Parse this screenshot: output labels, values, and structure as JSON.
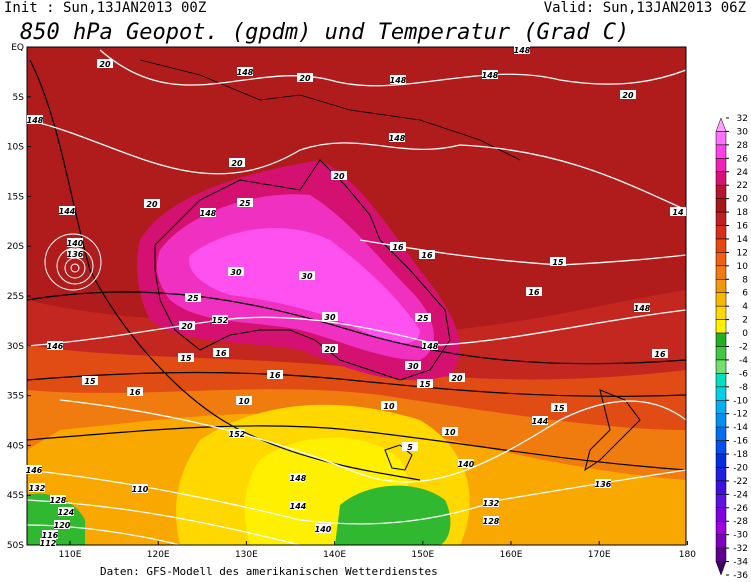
{
  "header": {
    "init": "Init : Sun,13JAN2013 00Z",
    "valid": "Valid: Sun,13JAN2013 06Z",
    "title": "850 hPa Geopot. (gpdm) und Temperatur (Grad C)"
  },
  "lat_labels": [
    "EQ",
    "5S",
    "10S",
    "15S",
    "20S",
    "25S",
    "30S",
    "35S",
    "40S",
    "45S",
    "50S"
  ],
  "lon_labels": [
    "110E",
    "120E",
    "130E",
    "140E",
    "150E",
    "160E",
    "170E",
    "180"
  ],
  "colorbar": {
    "ticks": [
      32,
      30,
      28,
      26,
      24,
      22,
      20,
      18,
      16,
      14,
      12,
      10,
      8,
      6,
      4,
      2,
      0,
      -2,
      -4,
      -6,
      -8,
      -10,
      -12,
      -14,
      -16,
      -18,
      -20,
      -22,
      -24,
      -26,
      -28,
      -30,
      -32,
      -34,
      -36
    ],
    "colors": [
      "#ffa0ff",
      "#ff70ff",
      "#ff40e8",
      "#f020b8",
      "#d81078",
      "#b81430",
      "#a81818",
      "#c02020",
      "#d83018",
      "#e84810",
      "#f06010",
      "#f07c10",
      "#f09810",
      "#f8b800",
      "#ffd800",
      "#fff000",
      "#20b020",
      "#40c840",
      "#70e070",
      "#00e0c0",
      "#00d0e8",
      "#00b0f0",
      "#0090f0",
      "#0070f0",
      "#0050f0",
      "#0030e0",
      "#2020e0",
      "#4010e0",
      "#6010e0",
      "#8000e0",
      "#a000e0",
      "#8000c0",
      "#600090",
      "#400060"
    ]
  },
  "contour_labels": [
    "20",
    "148",
    "20",
    "148",
    "148",
    "20",
    "148",
    "148",
    "20",
    "20",
    "20",
    "25",
    "148",
    "144",
    "30",
    "30",
    "25",
    "20",
    "152",
    "30",
    "25",
    "20",
    "148",
    "30",
    "16",
    "16",
    "15",
    "16",
    "148",
    "146",
    "16",
    "15",
    "16",
    "15",
    "16",
    "15",
    "20",
    "10",
    "10",
    "152",
    "144",
    "10",
    "15",
    "148",
    "140",
    "5",
    "16",
    "14",
    "146",
    "132",
    "128",
    "124",
    "120",
    "116",
    "112",
    "110",
    "144",
    "140",
    "132",
    "128",
    "136",
    "140",
    "136",
    "148"
  ],
  "footer": "Daten: GFS-Modell des amerikanischen Wetterdienstes"
}
